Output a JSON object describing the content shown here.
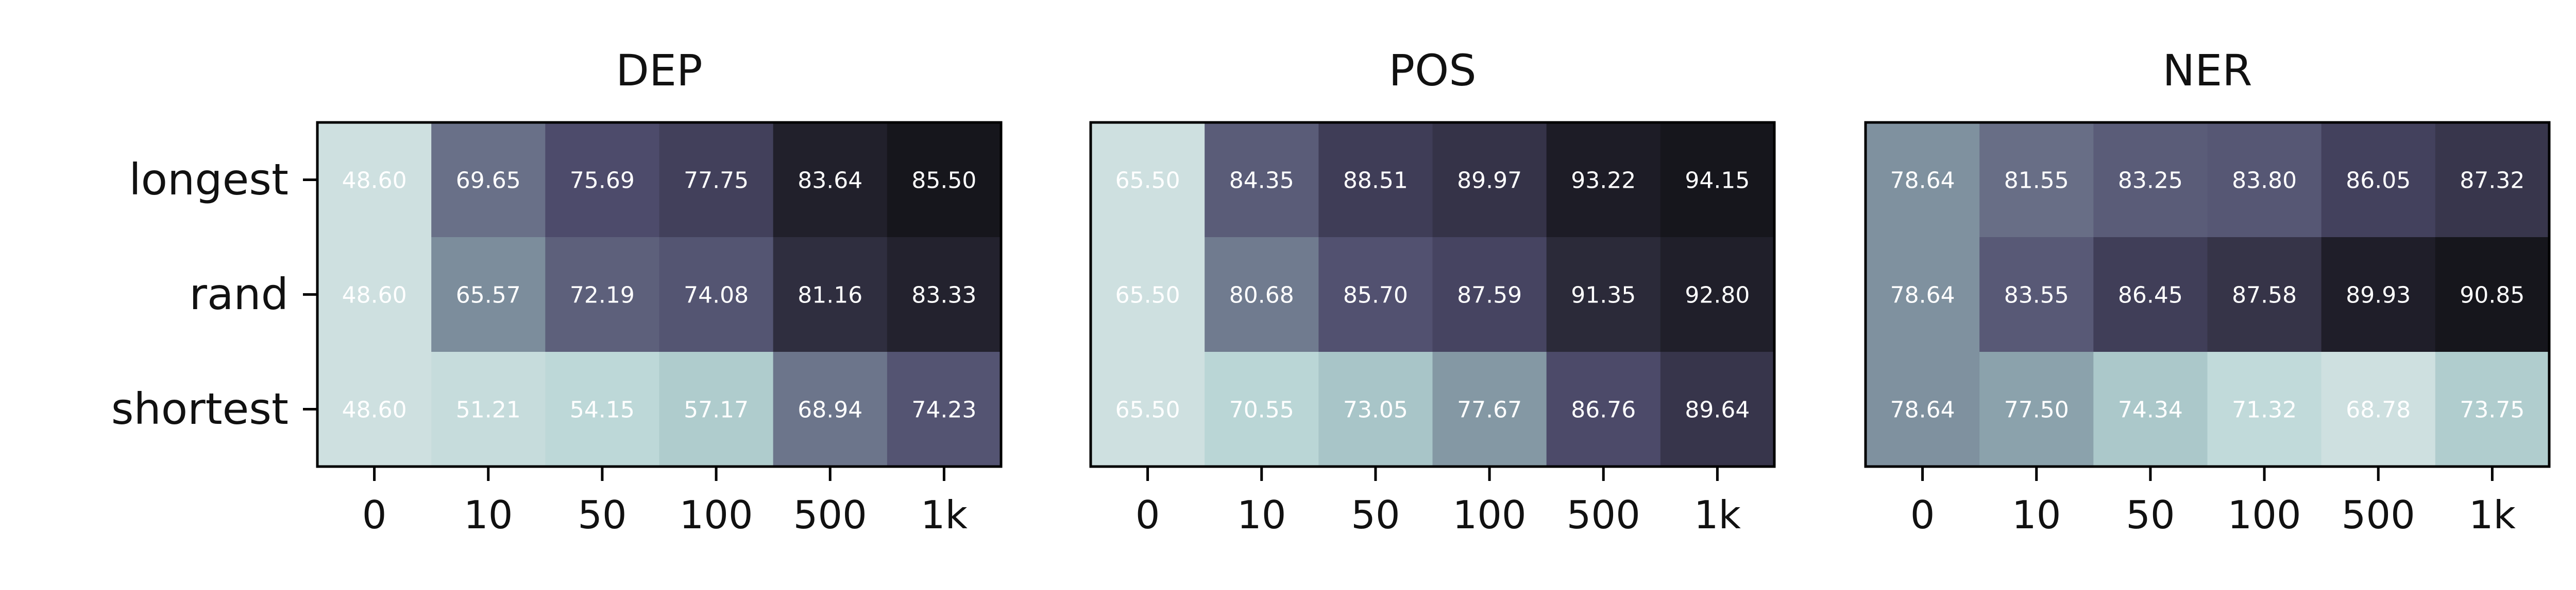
{
  "chart_data": [
    {
      "type": "heatmap",
      "title": "DEP",
      "rows": [
        "longest",
        "rand",
        "shortest"
      ],
      "columns": [
        "0",
        "10",
        "50",
        "100",
        "500",
        "1k"
      ],
      "values": [
        [
          48.6,
          69.65,
          75.69,
          77.75,
          83.64,
          85.5
        ],
        [
          48.6,
          65.57,
          72.19,
          74.08,
          81.16,
          83.33
        ],
        [
          48.6,
          51.21,
          54.15,
          57.17,
          68.94,
          74.23
        ]
      ],
      "colormap": "bone_r"
    },
    {
      "type": "heatmap",
      "title": "POS",
      "rows": [
        "longest",
        "rand",
        "shortest"
      ],
      "columns": [
        "0",
        "10",
        "50",
        "100",
        "500",
        "1k"
      ],
      "values": [
        [
          65.5,
          84.35,
          88.51,
          89.97,
          93.22,
          94.15
        ],
        [
          65.5,
          80.68,
          85.7,
          87.59,
          91.35,
          92.8
        ],
        [
          65.5,
          70.55,
          73.05,
          77.67,
          86.76,
          89.64
        ]
      ],
      "colormap": "bone_r"
    },
    {
      "type": "heatmap",
      "title": "NER",
      "rows": [
        "longest",
        "rand",
        "shortest"
      ],
      "columns": [
        "0",
        "10",
        "50",
        "100",
        "500",
        "1k"
      ],
      "values": [
        [
          78.64,
          81.55,
          83.25,
          83.8,
          86.05,
          87.32
        ],
        [
          78.64,
          83.55,
          86.45,
          87.58,
          89.93,
          90.85
        ],
        [
          78.64,
          77.5,
          74.34,
          71.32,
          68.78,
          73.75
        ]
      ],
      "colormap": "bone_r"
    }
  ]
}
